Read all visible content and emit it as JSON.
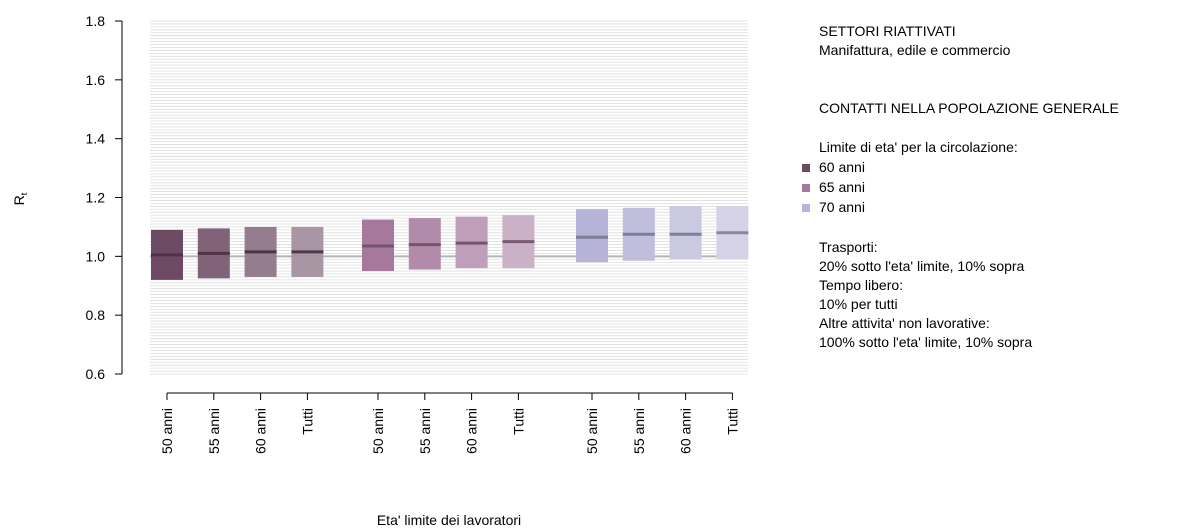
{
  "chart_data": {
    "type": "box",
    "ylabel": "Rt",
    "xlabel": "Eta' limite dei lavoratori",
    "ylim": [
      0.6,
      1.8
    ],
    "yticks": [
      0.6,
      0.8,
      1.0,
      1.2,
      1.4,
      1.6,
      1.8
    ],
    "ytick_labels": [
      "0.6",
      "0.8",
      "1.0",
      "1.2",
      "1.4",
      "1.6",
      "1.8"
    ],
    "reference_line": 1.0,
    "grid": true,
    "categories": [
      "50 anni",
      "55 anni",
      "60 anni",
      "Tutti"
    ],
    "groups": [
      {
        "name": "60 anni",
        "color": "#6b4a62",
        "boxes": [
          {
            "category": "50 anni",
            "low": 0.92,
            "median": 1.005,
            "high": 1.09
          },
          {
            "category": "55 anni",
            "low": 0.925,
            "median": 1.01,
            "high": 1.095
          },
          {
            "category": "60 anni",
            "low": 0.93,
            "median": 1.015,
            "high": 1.1
          },
          {
            "category": "Tutti",
            "low": 0.93,
            "median": 1.015,
            "high": 1.1
          }
        ]
      },
      {
        "name": "65 anni",
        "color": "#a5789c",
        "boxes": [
          {
            "category": "50 anni",
            "low": 0.95,
            "median": 1.035,
            "high": 1.125
          },
          {
            "category": "55 anni",
            "low": 0.955,
            "median": 1.04,
            "high": 1.13
          },
          {
            "category": "60 anni",
            "low": 0.96,
            "median": 1.045,
            "high": 1.135
          },
          {
            "category": "Tutti",
            "low": 0.96,
            "median": 1.05,
            "high": 1.14
          }
        ]
      },
      {
        "name": "70 anni",
        "color": "#b7b2d7",
        "boxes": [
          {
            "category": "50 anni",
            "low": 0.98,
            "median": 1.065,
            "high": 1.16
          },
          {
            "category": "55 anni",
            "low": 0.985,
            "median": 1.075,
            "high": 1.165
          },
          {
            "category": "60 anni",
            "low": 0.99,
            "median": 1.075,
            "high": 1.17
          },
          {
            "category": "Tutti",
            "low": 0.99,
            "median": 1.08,
            "high": 1.17
          }
        ]
      }
    ]
  },
  "legend": {
    "title1": "SETTORI RIATTIVATI",
    "subtitle1": "Manifattura, edile e commercio",
    "title2": "CONTATTI NELLA POPOLAZIONE GENERALE",
    "limit_label": "Limite di eta' per la circolazione:",
    "items": [
      {
        "label": "60 anni",
        "color": "#6b4a62"
      },
      {
        "label": "65 anni",
        "color": "#a5789c"
      },
      {
        "label": "70 anni",
        "color": "#b7b2d7"
      }
    ],
    "notes": [
      "Trasporti:",
      "20% sotto l'eta' limite, 10% sopra",
      "Tempo libero:",
      "10% per tutti",
      "Altre attivita' non lavorative:",
      "100% sotto l'eta' limite, 10% sopra"
    ]
  }
}
